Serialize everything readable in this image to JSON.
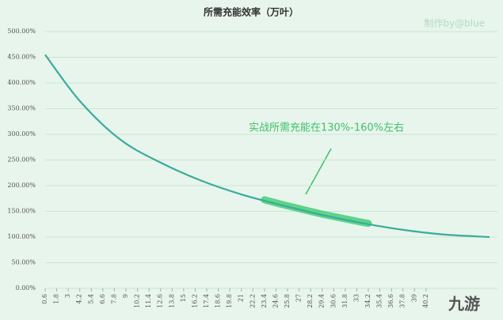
{
  "chart_data": {
    "type": "line",
    "title": "所需充能效率（万叶）",
    "watermark": "制作by@blue",
    "logo_text": "九游",
    "annotation": "实战所需充能在130%-160%左右",
    "x": [
      0.6,
      4.2,
      8.4,
      12.6,
      16.8,
      21,
      25.2,
      29.4,
      33.6,
      37.8,
      42,
      46.8
    ],
    "series": [
      {
        "color": "#3aab9c",
        "values": [
          455,
          365,
          290,
          245,
          210,
          183,
          162,
          143,
          127,
          114,
          105,
          100
        ]
      }
    ],
    "highlight_xrange": [
      23.4,
      34.2
    ],
    "highlight_color": "#4fd07c",
    "xlim": [
      0.6,
      46.8
    ],
    "xticks": [
      0.6,
      1.8,
      3,
      4.2,
      5.4,
      6.6,
      7.8,
      9,
      10.2,
      11.4,
      12.6,
      13.8,
      15,
      16.2,
      17.4,
      18.6,
      19.8,
      21,
      22.2,
      23.4,
      24.6,
      25.8,
      27,
      28.2,
      29.4,
      30.6,
      31.8,
      33,
      34.2,
      35.4,
      36.6,
      37.8,
      39,
      40.2
    ],
    "ylim": [
      0,
      500
    ],
    "yticks": [
      {
        "value": 0,
        "label": "0.00%"
      },
      {
        "value": 50,
        "label": "50.00%"
      },
      {
        "value": 100,
        "label": "100.00%"
      },
      {
        "value": 150,
        "label": "150.00%"
      },
      {
        "value": 200,
        "label": "200.00%"
      },
      {
        "value": 250,
        "label": "250.00%"
      },
      {
        "value": 300,
        "label": "300.00%"
      },
      {
        "value": 350,
        "label": "350.00%"
      },
      {
        "value": 400,
        "label": "400.00%"
      },
      {
        "value": 450,
        "label": "450.00%"
      },
      {
        "value": 500,
        "label": "500.00%"
      }
    ],
    "grid": true
  }
}
